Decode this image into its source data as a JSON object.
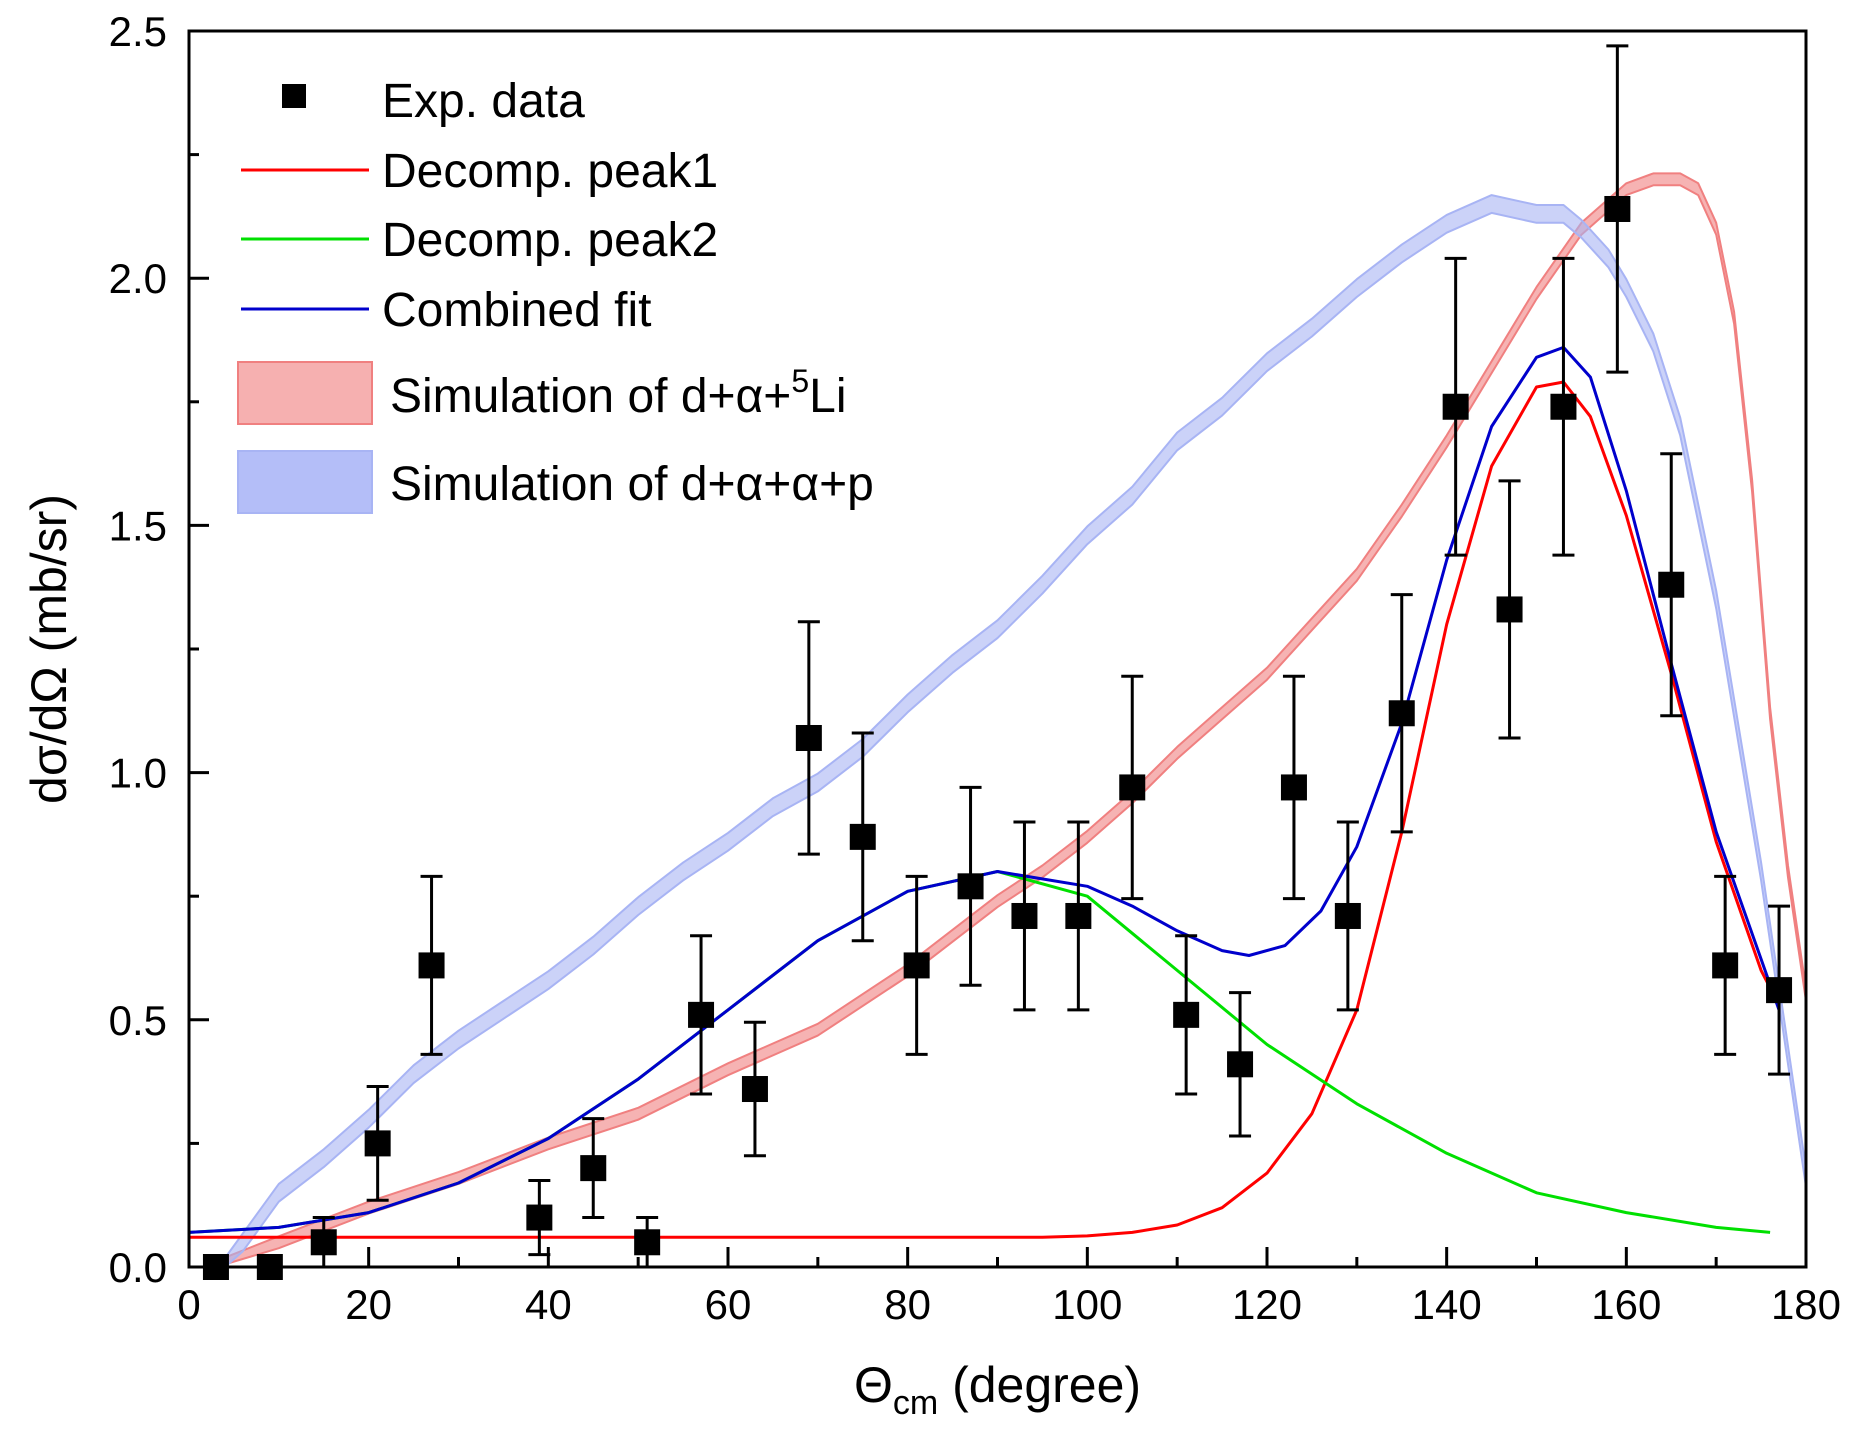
{
  "chart_data": {
    "type": "line",
    "xlabel": {
      "main": "Θ",
      "sub": "cm",
      "rest": " (degree)"
    },
    "ylabel": "dσ/dΩ (mb/sr)",
    "xlim": [
      0,
      180
    ],
    "ylim": [
      0,
      2.5
    ],
    "x_ticks": [
      0,
      20,
      40,
      60,
      80,
      100,
      120,
      140,
      160,
      180
    ],
    "x_tick_labels": [
      "0",
      "20",
      "40",
      "60",
      "80",
      "100",
      "120",
      "140",
      "160",
      "180"
    ],
    "y_ticks": [
      0,
      0.5,
      1.0,
      1.5,
      2.0,
      2.5
    ],
    "y_tick_labels": [
      "0.0",
      "0.5",
      "1.0",
      "1.5",
      "2.0",
      "2.5"
    ],
    "grid": false,
    "legend_position": "top-left",
    "legend": {
      "exp": "Exp. data",
      "peak1": "Decomp. peak1",
      "peak2": "Decomp. peak2",
      "combined": "Combined fit",
      "sim_li_prefix": "Simulation of d+α+",
      "sim_li_sup": "5",
      "sim_li_suffix": "Li",
      "sim_p": "Simulation of d+α+α+p"
    },
    "colors": {
      "exp": "#000000",
      "peak1": "#ff0000",
      "peak2": "#00e000",
      "combined": "#0000cc",
      "sim_li": "#f08080",
      "sim_p": "#a8b4f4"
    },
    "exp_data": [
      {
        "x": 3,
        "y": 0.0,
        "err": 0.0
      },
      {
        "x": 9,
        "y": 0.0,
        "err": 0.0
      },
      {
        "x": 15,
        "y": 0.05,
        "err": 0.05
      },
      {
        "x": 21,
        "y": 0.25,
        "err": 0.115
      },
      {
        "x": 27,
        "y": 0.61,
        "err": 0.18
      },
      {
        "x": 39,
        "y": 0.1,
        "err": 0.075
      },
      {
        "x": 45,
        "y": 0.2,
        "err": 0.1
      },
      {
        "x": 51,
        "y": 0.05,
        "err": 0.05
      },
      {
        "x": 57,
        "y": 0.51,
        "err": 0.16
      },
      {
        "x": 63,
        "y": 0.36,
        "err": 0.135
      },
      {
        "x": 69,
        "y": 1.07,
        "err": 0.235
      },
      {
        "x": 75,
        "y": 0.87,
        "err": 0.21
      },
      {
        "x": 81,
        "y": 0.61,
        "err": 0.18
      },
      {
        "x": 87,
        "y": 0.77,
        "err": 0.2
      },
      {
        "x": 93,
        "y": 0.71,
        "err": 0.19
      },
      {
        "x": 99,
        "y": 0.71,
        "err": 0.19
      },
      {
        "x": 105,
        "y": 0.97,
        "err": 0.225
      },
      {
        "x": 111,
        "y": 0.51,
        "err": 0.16
      },
      {
        "x": 117,
        "y": 0.41,
        "err": 0.145
      },
      {
        "x": 123,
        "y": 0.97,
        "err": 0.225
      },
      {
        "x": 129,
        "y": 0.71,
        "err": 0.19
      },
      {
        "x": 135,
        "y": 1.12,
        "err": 0.24
      },
      {
        "x": 141,
        "y": 1.74,
        "err": 0.3
      },
      {
        "x": 147,
        "y": 1.33,
        "err": 0.26
      },
      {
        "x": 153,
        "y": 1.74,
        "err": 0.3
      },
      {
        "x": 159,
        "y": 2.14,
        "err": 0.33
      },
      {
        "x": 165,
        "y": 1.38,
        "err": 0.265
      },
      {
        "x": 171,
        "y": 0.61,
        "err": 0.18
      },
      {
        "x": 177,
        "y": 0.56,
        "err": 0.17
      }
    ],
    "series": [
      {
        "name": "Decomp. peak1",
        "key": "peak1",
        "x": [
          0,
          20,
          40,
          60,
          80,
          95,
          100,
          105,
          110,
          115,
          120,
          125,
          130,
          135,
          140,
          145,
          150,
          153,
          156,
          160,
          165,
          170,
          175,
          177
        ],
        "y": [
          0.06,
          0.06,
          0.06,
          0.06,
          0.06,
          0.06,
          0.063,
          0.07,
          0.085,
          0.12,
          0.19,
          0.31,
          0.52,
          0.88,
          1.3,
          1.62,
          1.78,
          1.79,
          1.72,
          1.52,
          1.2,
          0.86,
          0.6,
          0.53
        ]
      },
      {
        "name": "Decomp. peak2",
        "key": "peak2",
        "x": [
          0,
          10,
          20,
          30,
          40,
          50,
          60,
          70,
          80,
          90,
          100,
          110,
          120,
          130,
          140,
          150,
          160,
          170,
          176
        ],
        "y": [
          0.07,
          0.08,
          0.11,
          0.17,
          0.26,
          0.38,
          0.52,
          0.66,
          0.76,
          0.8,
          0.75,
          0.6,
          0.45,
          0.33,
          0.23,
          0.15,
          0.11,
          0.08,
          0.07
        ]
      },
      {
        "name": "Combined fit",
        "key": "combined",
        "x": [
          0,
          10,
          20,
          30,
          40,
          50,
          60,
          70,
          80,
          90,
          100,
          105,
          110,
          115,
          118,
          122,
          126,
          130,
          135,
          140,
          145,
          150,
          153,
          156,
          160,
          165,
          170,
          177
        ],
        "y": [
          0.07,
          0.08,
          0.11,
          0.17,
          0.26,
          0.38,
          0.52,
          0.66,
          0.76,
          0.8,
          0.77,
          0.73,
          0.68,
          0.64,
          0.63,
          0.65,
          0.72,
          0.85,
          1.1,
          1.43,
          1.7,
          1.84,
          1.86,
          1.8,
          1.57,
          1.22,
          0.88,
          0.52
        ]
      }
    ],
    "bands": [
      {
        "name": "Simulation of d+α+5Li",
        "key": "sim_li",
        "half_width": 0.012,
        "x": [
          3,
          10,
          20,
          30,
          40,
          50,
          60,
          70,
          80,
          85,
          90,
          95,
          100,
          105,
          110,
          115,
          120,
          125,
          130,
          135,
          140,
          145,
          150,
          155,
          160,
          163,
          166,
          168,
          170,
          172,
          174,
          176,
          178,
          180
        ],
        "y": [
          0.0,
          0.05,
          0.12,
          0.18,
          0.25,
          0.31,
          0.4,
          0.48,
          0.6,
          0.67,
          0.74,
          0.8,
          0.87,
          0.95,
          1.04,
          1.12,
          1.2,
          1.3,
          1.4,
          1.53,
          1.67,
          1.82,
          1.97,
          2.1,
          2.18,
          2.2,
          2.2,
          2.18,
          2.1,
          1.92,
          1.58,
          1.12,
          0.8,
          0.55
        ]
      },
      {
        "name": "Simulation of d+α+α+p",
        "key": "sim_p",
        "half_width": 0.018,
        "x": [
          4,
          6,
          10,
          15,
          20,
          25,
          30,
          35,
          40,
          45,
          50,
          55,
          60,
          65,
          70,
          75,
          80,
          85,
          90,
          95,
          100,
          105,
          110,
          115,
          120,
          125,
          130,
          135,
          140,
          145,
          150,
          153,
          155,
          158,
          160,
          163,
          166,
          170,
          175,
          180
        ],
        "y": [
          0.0,
          0.05,
          0.15,
          0.22,
          0.3,
          0.39,
          0.46,
          0.52,
          0.58,
          0.65,
          0.73,
          0.8,
          0.86,
          0.93,
          0.98,
          1.05,
          1.14,
          1.22,
          1.29,
          1.38,
          1.48,
          1.56,
          1.67,
          1.74,
          1.83,
          1.9,
          1.98,
          2.05,
          2.11,
          2.15,
          2.13,
          2.13,
          2.1,
          2.04,
          1.98,
          1.87,
          1.7,
          1.35,
          0.8,
          0.18
        ]
      }
    ]
  }
}
